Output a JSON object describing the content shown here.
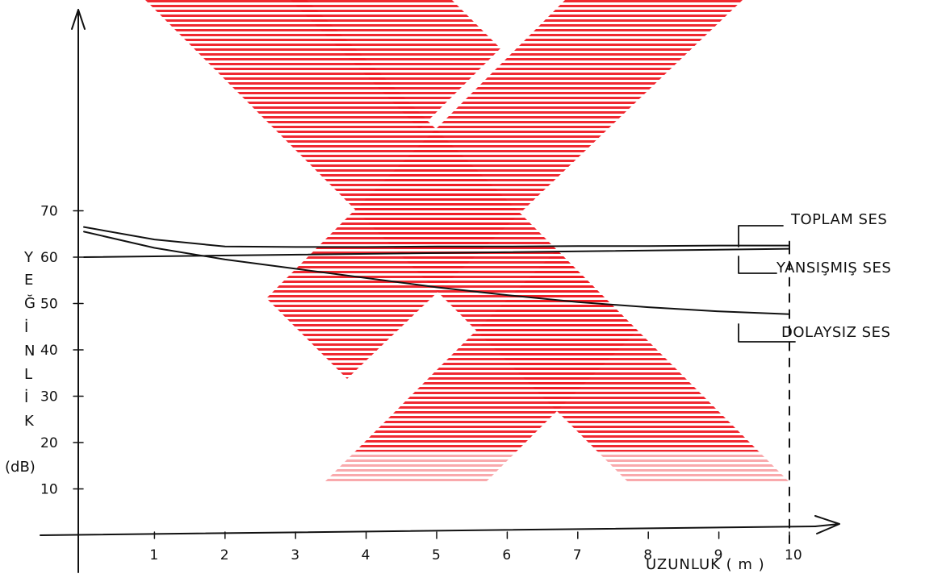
{
  "watermark": {
    "color": "#ef1c25",
    "icon": "x-logo-watermark"
  },
  "chart_data": {
    "type": "line",
    "xlabel": "UZUNLUK ( m )",
    "ylabel_letters": [
      "Y",
      "E",
      "Ğ",
      "İ",
      "N",
      "L",
      "İ",
      "K"
    ],
    "ylabel_unit": "(dB)",
    "xlim": [
      0,
      10
    ],
    "ylim": [
      0,
      70
    ],
    "x_ticks": [
      1,
      2,
      3,
      4,
      5,
      6,
      7,
      8,
      9,
      10
    ],
    "y_ticks": [
      10,
      20,
      30,
      40,
      50,
      60,
      70
    ],
    "grid": false,
    "series": [
      {
        "name": "TOPLAM SES",
        "x": [
          0,
          1,
          2,
          3,
          4,
          5,
          6,
          7,
          8,
          9,
          10
        ],
        "y": [
          66.5,
          63.8,
          62.3,
          62.2,
          62.2,
          62.3,
          62.3,
          62.4,
          62.4,
          62.5,
          62.5
        ]
      },
      {
        "name": "YANSIŞMIŞ SES",
        "x": [
          0,
          10
        ],
        "y": [
          60,
          61.8
        ]
      },
      {
        "name": "DOLAYSIZ SES",
        "x": [
          0,
          1,
          2,
          3,
          4,
          5,
          6,
          7,
          8,
          9,
          10
        ],
        "y": [
          65.5,
          62,
          59.5,
          57.5,
          55.5,
          53.5,
          51.8,
          50.3,
          49.2,
          48.3,
          47.7
        ]
      }
    ],
    "vertical_marker_x": 10,
    "legend_position": "right"
  }
}
